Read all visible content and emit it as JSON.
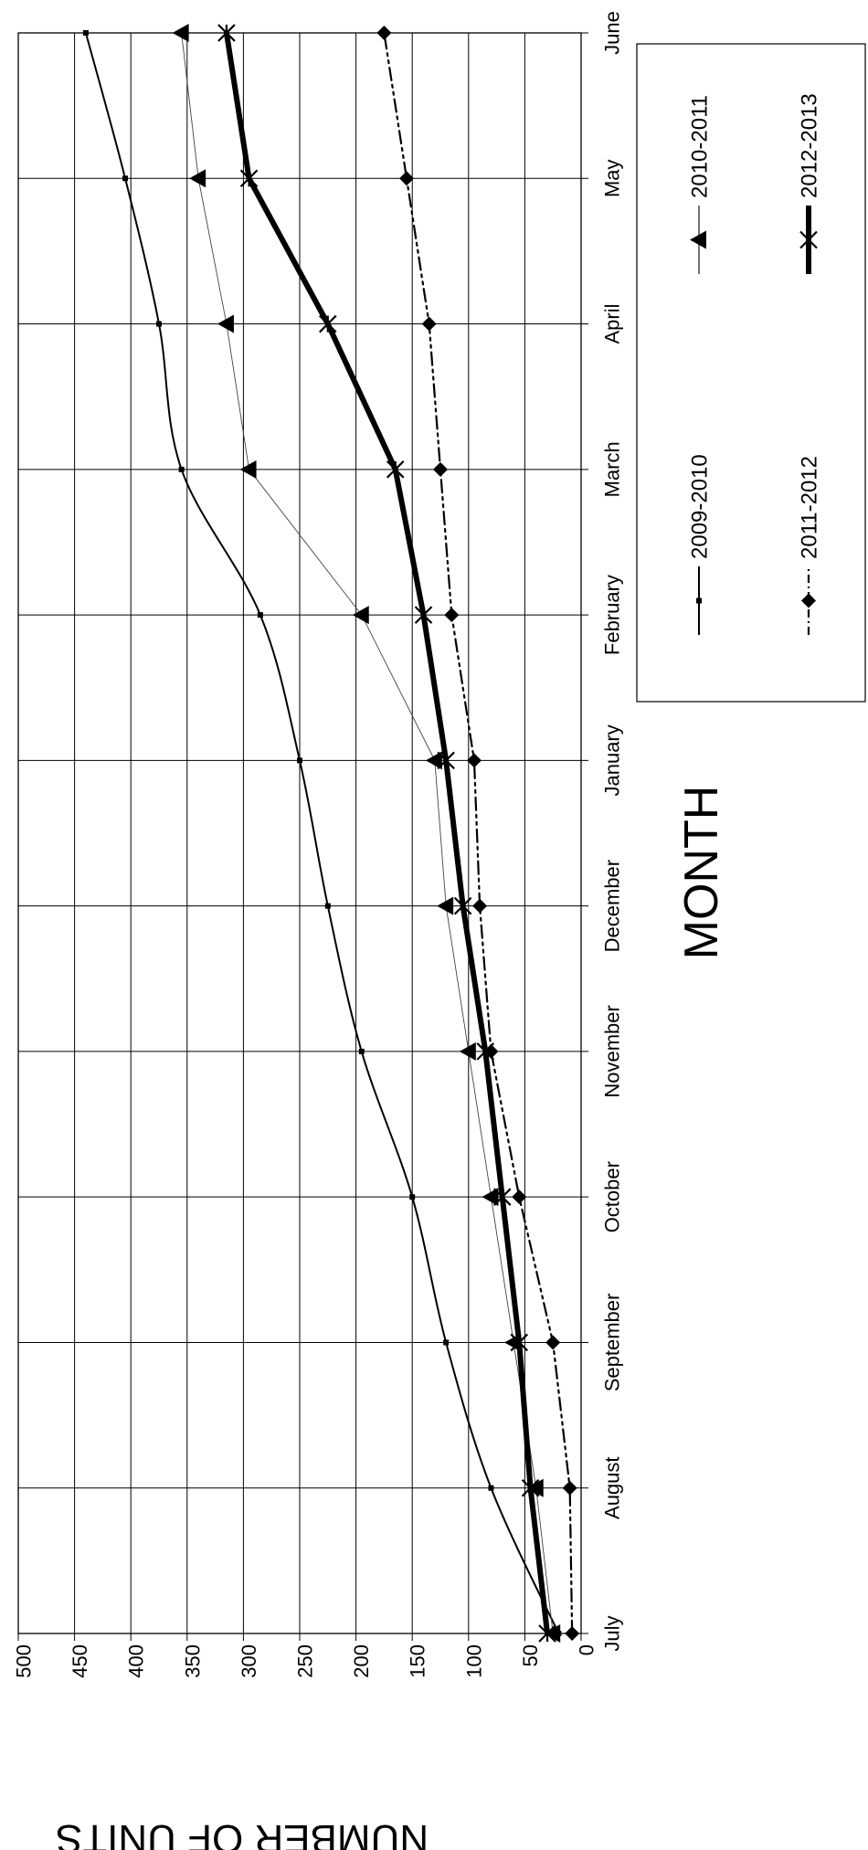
{
  "chart_data": {
    "type": "line",
    "orientation": "rotated-90-clockwise",
    "categories": [
      "July",
      "August",
      "September",
      "October",
      "November",
      "December",
      "January",
      "February",
      "March",
      "April",
      "May",
      "June"
    ],
    "xlabel": "MONTH",
    "ylabel": "NUMBER OF UNITS",
    "ylim": [
      0,
      500
    ],
    "yticks": [
      "0",
      "50",
      "100",
      "150",
      "200",
      "250",
      "300",
      "350",
      "400",
      "450",
      "500"
    ],
    "grid": true,
    "legend_position": "right",
    "series": [
      {
        "name": "2009-2010",
        "marker": "small-square",
        "style": "thin-solid",
        "values": [
          20,
          80,
          120,
          150,
          195,
          225,
          250,
          285,
          355,
          375,
          405,
          440
        ]
      },
      {
        "name": "2010-2011",
        "marker": "triangle",
        "style": "hairline",
        "values": [
          25,
          40,
          60,
          80,
          100,
          120,
          130,
          195,
          295,
          315,
          340,
          355
        ]
      },
      {
        "name": "2011-2012",
        "marker": "diamond",
        "style": "dash-dot",
        "values": [
          8,
          10,
          25,
          55,
          80,
          90,
          95,
          115,
          125,
          135,
          155,
          175
        ]
      },
      {
        "name": "2012-2013",
        "marker": "asterisk",
        "style": "thick-solid",
        "values": [
          30,
          45,
          55,
          70,
          85,
          105,
          120,
          140,
          165,
          225,
          295,
          315
        ]
      }
    ]
  }
}
